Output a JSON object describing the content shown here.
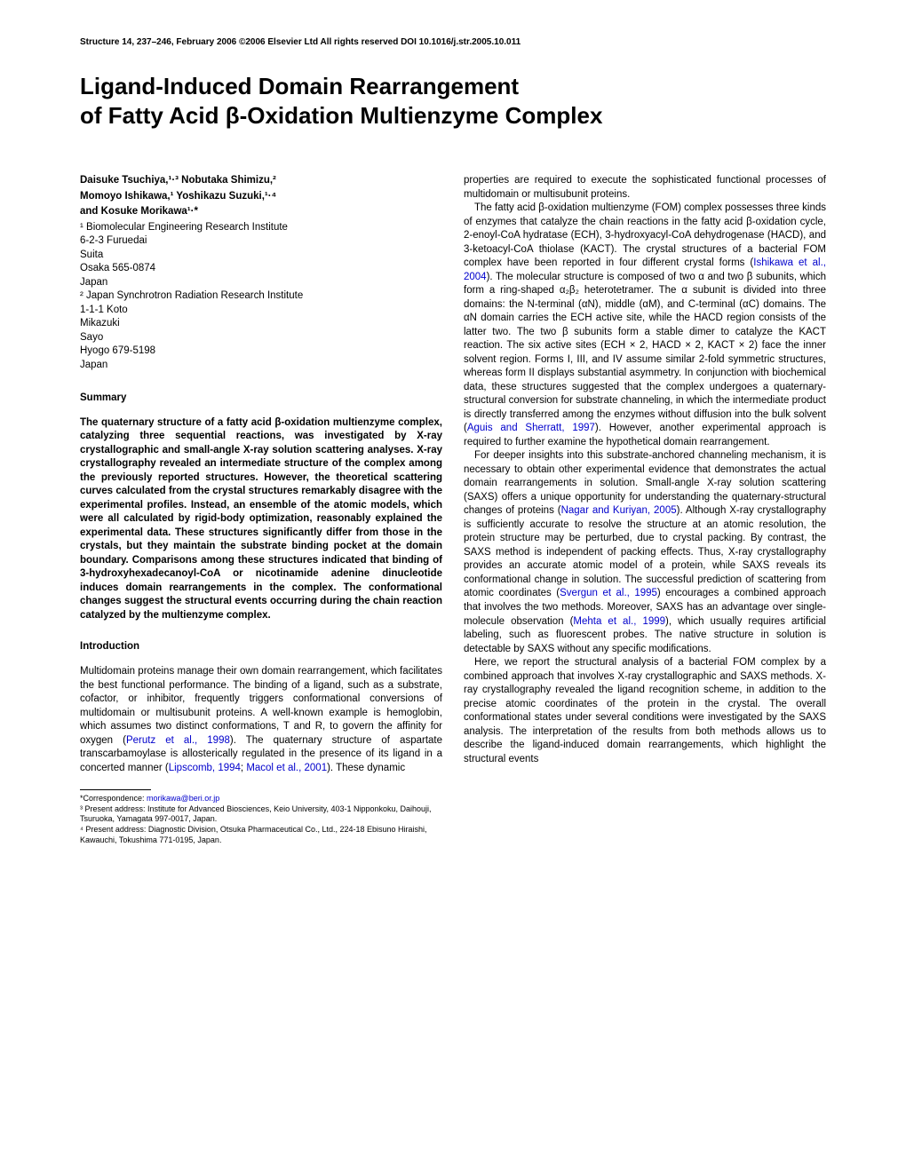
{
  "header": "Structure 14, 237–246, February 2006 ©2006 Elsevier Ltd All rights reserved   DOI 10.1016/j.str.2005.10.011",
  "title_line1": "Ligand-Induced Domain Rearrangement",
  "title_line2": "of Fatty Acid β-Oxidation Multienzyme Complex",
  "authors": {
    "line1": "Daisuke Tsuchiya,¹·³ Nobutaka Shimizu,²",
    "line2": "Momoyo Ishikawa,¹ Yoshikazu Suzuki,¹·⁴",
    "line3": "and Kosuke Morikawa¹·*"
  },
  "affiliations": [
    "¹ Biomolecular Engineering Research Institute",
    "6-2-3 Furuedai",
    "Suita",
    "Osaka 565-0874",
    "Japan",
    "² Japan Synchrotron Radiation Research Institute",
    "1-1-1 Koto",
    "Mikazuki",
    "Sayo",
    "Hyogo 679-5198",
    "Japan"
  ],
  "summary_heading": "Summary",
  "summary_text": "The quaternary structure of a fatty acid β-oxidation multienzyme complex, catalyzing three sequential reactions, was investigated by X-ray crystallographic and small-angle X-ray solution scattering analyses. X-ray crystallography revealed an intermediate structure of the complex among the previously reported structures. However, the theoretical scattering curves calculated from the crystal structures remarkably disagree with the experimental profiles. Instead, an ensemble of the atomic models, which were all calculated by rigid-body optimization, reasonably explained the experimental data. These structures significantly differ from those in the crystals, but they maintain the substrate binding pocket at the domain boundary. Comparisons among these structures indicated that binding of 3-hydroxyhexadecanoyl-CoA or nicotinamide adenine dinucleotide induces domain rearrangements in the complex. The conformational changes suggest the structural events occurring during the chain reaction catalyzed by the multienzyme complex.",
  "intro_heading": "Introduction",
  "intro_p1_a": "Multidomain proteins manage their own domain rearrangement, which facilitates the best functional performance. The binding of a ligand, such as a substrate, cofactor, or inhibitor, frequently triggers conformational conversions of multidomain or multisubunit proteins. A well-known example is hemoglobin, which assumes two distinct conformations, T and R, to govern the affinity for oxygen (",
  "intro_p1_link1": "Perutz et al., 1998",
  "intro_p1_b": "). The quaternary structure of aspartate transcarbamoylase is allosterically regulated in the presence of its ligand in a concerted manner (",
  "intro_p1_link2": "Lipscomb, 1994",
  "intro_p1_c": "; ",
  "intro_p1_link3": "Macol et al., 2001",
  "intro_p1_d": "). These dynamic",
  "col2_p1": "properties are required to execute the sophisticated functional processes of multidomain or multisubunit proteins.",
  "col2_p2_a": "The fatty acid β-oxidation multienzyme (FOM) complex possesses three kinds of enzymes that catalyze the chain reactions in the fatty acid β-oxidation cycle, 2-enoyl-CoA hydratase (ECH), 3-hydroxyacyl-CoA dehydrogenase (HACD), and 3-ketoacyl-CoA thiolase (KACT). The crystal structures of a bacterial FOM complex have been reported in four different crystal forms (",
  "col2_p2_link1": "Ishikawa et al., 2004",
  "col2_p2_b": "). The molecular structure is composed of two α and two β subunits, which form a ring-shaped α₂β₂ heterotetramer. The α subunit is divided into three domains: the N-terminal (αN), middle (αM), and C-terminal (αC) domains. The αN domain carries the ECH active site, while the HACD region consists of the latter two. The two β subunits form a stable dimer to catalyze the KACT reaction. The six active sites (ECH × 2, HACD × 2, KACT × 2) face the inner solvent region. Forms I, III, and IV assume similar 2-fold symmetric structures, whereas form II displays substantial asymmetry. In conjunction with biochemical data, these structures suggested that the complex undergoes a quaternary-structural conversion for substrate channeling, in which the intermediate product is directly transferred among the enzymes without diffusion into the bulk solvent (",
  "col2_p2_link2": "Aguis and Sherratt, 1997",
  "col2_p2_c": "). However, another experimental approach is required to further examine the hypothetical domain rearrangement.",
  "col2_p3_a": "For deeper insights into this substrate-anchored channeling mechanism, it is necessary to obtain other experimental evidence that demonstrates the actual domain rearrangements in solution. Small-angle X-ray solution scattering (SAXS) offers a unique opportunity for understanding the quaternary-structural changes of proteins (",
  "col2_p3_link1": "Nagar and Kuriyan, 2005",
  "col2_p3_b": "). Although X-ray crystallography is sufficiently accurate to resolve the structure at an atomic resolution, the protein structure may be perturbed, due to crystal packing. By contrast, the SAXS method is independent of packing effects. Thus, X-ray crystallography provides an accurate atomic model of a protein, while SAXS reveals its conformational change in solution. The successful prediction of scattering from atomic coordinates (",
  "col2_p3_link2": "Svergun et al., 1995",
  "col2_p3_c": ") encourages a combined approach that involves the two methods. Moreover, SAXS has an advantage over single-molecule observation (",
  "col2_p3_link3": "Mehta et al., 1999",
  "col2_p3_d": "), which usually requires artificial labeling, such as fluorescent probes. The native structure in solution is detectable by SAXS without any specific modifications.",
  "col2_p4": "Here, we report the structural analysis of a bacterial FOM complex by a combined approach that involves X-ray crystallographic and SAXS methods. X-ray crystallography revealed the ligand recognition scheme, in addition to the precise atomic coordinates of the protein in the crystal. The overall conformational states under several conditions were investigated by the SAXS analysis. The interpretation of the results from both methods allows us to describe the ligand-induced domain rearrangements, which highlight the structural events",
  "footnotes": {
    "corr_a": "*Correspondence: ",
    "corr_link": "morikawa@beri.or.jp",
    "fn3": "³ Present address: Institute for Advanced Biosciences, Keio University, 403-1 Nipponkoku, Daihouji, Tsuruoka, Yamagata 997-0017, Japan.",
    "fn4": "⁴ Present address: Diagnostic Division, Otsuka Pharmaceutical Co., Ltd., 224-18 Ebisuno Hiraishi, Kawauchi, Tokushima 771-0195, Japan."
  }
}
